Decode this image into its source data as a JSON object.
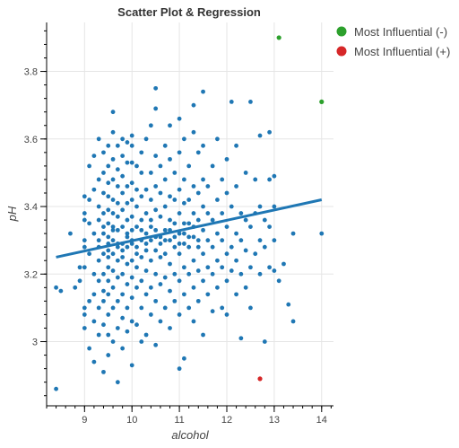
{
  "chart_data": {
    "type": "scatter",
    "title": "Scatter Plot & Regression",
    "xlabel": "alcohol",
    "ylabel": "pH",
    "xlim": [
      8.2,
      14.25
    ],
    "ylim": [
      2.81,
      3.945
    ],
    "x_ticks": [
      9,
      10,
      11,
      12,
      13,
      14
    ],
    "x_tick_labels": [
      "9",
      "10",
      "11",
      "12",
      "13",
      "14"
    ],
    "x_minor_step": 0.2,
    "y_ticks": [
      3.0,
      3.2,
      3.4,
      3.6,
      3.8
    ],
    "y_tick_labels": [
      "3",
      "3.2",
      "3.4",
      "3.6",
      "3.8"
    ],
    "y_minor_step": 0.04,
    "grid": true,
    "legend_position": "outside-right-top",
    "colors": {
      "points": "#1f77b4",
      "regression": "#1f77b4",
      "most_influential_neg": "#2ca02c",
      "most_influential_pos": "#d62728"
    },
    "regression": {
      "x": [
        8.4,
        14.0
      ],
      "y": [
        3.25,
        3.42
      ]
    },
    "legend": [
      {
        "label": "Most Influential (-)",
        "color": "#2ca02c"
      },
      {
        "label": "Most Influential (+)",
        "color": "#d62728"
      }
    ],
    "influential_negative": [
      [
        13.1,
        3.9
      ],
      [
        14.0,
        3.71
      ]
    ],
    "influential_positive": [
      [
        12.7,
        2.89
      ]
    ],
    "points": [
      [
        8.4,
        2.86
      ],
      [
        8.4,
        3.16
      ],
      [
        8.5,
        3.15
      ],
      [
        8.7,
        3.32
      ],
      [
        8.8,
        3.16
      ],
      [
        8.9,
        3.18
      ],
      [
        8.9,
        3.22
      ],
      [
        9.0,
        3.08
      ],
      [
        9.0,
        3.28
      ],
      [
        9.0,
        3.36
      ],
      [
        9.0,
        3.43
      ],
      [
        9.0,
        3.22
      ],
      [
        9.0,
        3.3
      ],
      [
        9.0,
        3.38
      ],
      [
        9.0,
        3.1
      ],
      [
        9.0,
        3.04
      ],
      [
        9.1,
        2.98
      ],
      [
        9.1,
        3.12
      ],
      [
        9.1,
        3.26
      ],
      [
        9.1,
        3.42
      ],
      [
        9.1,
        3.52
      ],
      [
        9.1,
        3.35
      ],
      [
        9.2,
        2.94
      ],
      [
        9.2,
        3.06
      ],
      [
        9.2,
        3.2
      ],
      [
        9.2,
        3.32
      ],
      [
        9.2,
        3.45
      ],
      [
        9.2,
        3.55
      ],
      [
        9.2,
        3.14
      ],
      [
        9.3,
        3.02
      ],
      [
        9.3,
        3.1
      ],
      [
        9.3,
        3.18
      ],
      [
        9.3,
        3.24
      ],
      [
        9.3,
        3.3
      ],
      [
        9.3,
        3.36
      ],
      [
        9.3,
        3.4
      ],
      [
        9.3,
        3.48
      ],
      [
        9.3,
        3.6
      ],
      [
        9.3,
        3.28
      ],
      [
        9.4,
        2.91
      ],
      [
        9.4,
        3.05
      ],
      [
        9.4,
        3.15
      ],
      [
        9.4,
        3.2
      ],
      [
        9.4,
        3.26
      ],
      [
        9.4,
        3.32
      ],
      [
        9.4,
        3.38
      ],
      [
        9.4,
        3.44
      ],
      [
        9.4,
        3.5
      ],
      [
        9.4,
        3.56
      ],
      [
        9.4,
        3.34
      ],
      [
        9.4,
        3.12
      ],
      [
        9.5,
        2.96
      ],
      [
        9.5,
        3.02
      ],
      [
        9.5,
        3.08
      ],
      [
        9.5,
        3.14
      ],
      [
        9.5,
        3.18
      ],
      [
        9.5,
        3.22
      ],
      [
        9.5,
        3.27
      ],
      [
        9.5,
        3.31
      ],
      [
        9.5,
        3.35
      ],
      [
        9.5,
        3.39
      ],
      [
        9.5,
        3.43
      ],
      [
        9.5,
        3.47
      ],
      [
        9.5,
        3.52
      ],
      [
        9.5,
        3.58
      ],
      [
        9.5,
        3.25
      ],
      [
        9.5,
        3.29
      ],
      [
        9.6,
        3.0
      ],
      [
        9.6,
        3.1
      ],
      [
        9.6,
        3.16
      ],
      [
        9.6,
        3.21
      ],
      [
        9.6,
        3.26
      ],
      [
        9.6,
        3.3
      ],
      [
        9.6,
        3.34
      ],
      [
        9.6,
        3.38
      ],
      [
        9.6,
        3.42
      ],
      [
        9.6,
        3.48
      ],
      [
        9.6,
        3.54
      ],
      [
        9.6,
        3.62
      ],
      [
        9.6,
        3.68
      ],
      [
        9.6,
        3.33
      ],
      [
        9.7,
        2.88
      ],
      [
        9.7,
        3.04
      ],
      [
        9.7,
        3.12
      ],
      [
        9.7,
        3.19
      ],
      [
        9.7,
        3.24
      ],
      [
        9.7,
        3.29
      ],
      [
        9.7,
        3.33
      ],
      [
        9.7,
        3.37
      ],
      [
        9.7,
        3.41
      ],
      [
        9.7,
        3.46
      ],
      [
        9.7,
        3.51
      ],
      [
        9.7,
        3.58
      ],
      [
        9.7,
        3.28
      ],
      [
        9.8,
        2.98
      ],
      [
        9.8,
        3.07
      ],
      [
        9.8,
        3.14
      ],
      [
        9.8,
        3.2
      ],
      [
        9.8,
        3.25
      ],
      [
        9.8,
        3.29
      ],
      [
        9.8,
        3.34
      ],
      [
        9.8,
        3.39
      ],
      [
        9.8,
        3.44
      ],
      [
        9.8,
        3.49
      ],
      [
        9.8,
        3.55
      ],
      [
        9.8,
        3.6
      ],
      [
        9.8,
        3.27
      ],
      [
        9.9,
        3.03
      ],
      [
        9.9,
        3.1
      ],
      [
        9.9,
        3.17
      ],
      [
        9.9,
        3.23
      ],
      [
        9.9,
        3.28
      ],
      [
        9.9,
        3.32
      ],
      [
        9.9,
        3.36
      ],
      [
        9.9,
        3.41
      ],
      [
        9.9,
        3.46
      ],
      [
        9.9,
        3.53
      ],
      [
        9.9,
        3.59
      ],
      [
        9.9,
        3.31
      ],
      [
        10.0,
        2.93
      ],
      [
        10.0,
        3.06
      ],
      [
        10.0,
        3.13
      ],
      [
        10.0,
        3.19
      ],
      [
        10.0,
        3.24
      ],
      [
        10.0,
        3.29
      ],
      [
        10.0,
        3.33
      ],
      [
        10.0,
        3.37
      ],
      [
        10.0,
        3.42
      ],
      [
        10.0,
        3.47
      ],
      [
        10.0,
        3.53
      ],
      [
        10.0,
        3.58
      ],
      [
        10.0,
        3.61
      ],
      [
        10.0,
        3.3
      ],
      [
        10.1,
        3.05
      ],
      [
        10.1,
        3.16
      ],
      [
        10.1,
        3.22
      ],
      [
        10.1,
        3.28
      ],
      [
        10.1,
        3.34
      ],
      [
        10.1,
        3.4
      ],
      [
        10.1,
        3.45
      ],
      [
        10.1,
        3.52
      ],
      [
        10.1,
        3.26
      ],
      [
        10.2,
        3.0
      ],
      [
        10.2,
        3.1
      ],
      [
        10.2,
        3.18
      ],
      [
        10.2,
        3.25
      ],
      [
        10.2,
        3.3
      ],
      [
        10.2,
        3.36
      ],
      [
        10.2,
        3.43
      ],
      [
        10.2,
        3.5
      ],
      [
        10.2,
        3.56
      ],
      [
        10.2,
        3.33
      ],
      [
        10.3,
        3.02
      ],
      [
        10.3,
        3.14
      ],
      [
        10.3,
        3.21
      ],
      [
        10.3,
        3.27
      ],
      [
        10.3,
        3.32
      ],
      [
        10.3,
        3.38
      ],
      [
        10.3,
        3.45
      ],
      [
        10.3,
        3.6
      ],
      [
        10.3,
        3.29
      ],
      [
        10.4,
        3.08
      ],
      [
        10.4,
        3.16
      ],
      [
        10.4,
        3.24
      ],
      [
        10.4,
        3.3
      ],
      [
        10.4,
        3.36
      ],
      [
        10.4,
        3.42
      ],
      [
        10.4,
        3.5
      ],
      [
        10.4,
        3.64
      ],
      [
        10.4,
        3.34
      ],
      [
        10.5,
        2.99
      ],
      [
        10.5,
        3.12
      ],
      [
        10.5,
        3.2
      ],
      [
        10.5,
        3.27
      ],
      [
        10.5,
        3.33
      ],
      [
        10.5,
        3.39
      ],
      [
        10.5,
        3.46
      ],
      [
        10.5,
        3.55
      ],
      [
        10.5,
        3.69
      ],
      [
        10.5,
        3.75
      ],
      [
        10.5,
        3.31
      ],
      [
        10.6,
        3.06
      ],
      [
        10.6,
        3.17
      ],
      [
        10.6,
        3.25
      ],
      [
        10.6,
        3.31
      ],
      [
        10.6,
        3.37
      ],
      [
        10.6,
        3.44
      ],
      [
        10.6,
        3.52
      ],
      [
        10.6,
        3.29
      ],
      [
        10.7,
        3.1
      ],
      [
        10.7,
        3.19
      ],
      [
        10.7,
        3.26
      ],
      [
        10.7,
        3.33
      ],
      [
        10.7,
        3.4
      ],
      [
        10.7,
        3.48
      ],
      [
        10.7,
        3.58
      ],
      [
        10.7,
        3.3
      ],
      [
        10.8,
        3.04
      ],
      [
        10.8,
        3.15
      ],
      [
        10.8,
        3.23
      ],
      [
        10.8,
        3.3
      ],
      [
        10.8,
        3.36
      ],
      [
        10.8,
        3.43
      ],
      [
        10.8,
        3.54
      ],
      [
        10.8,
        3.64
      ],
      [
        10.8,
        3.33
      ],
      [
        10.9,
        3.12
      ],
      [
        10.9,
        3.2
      ],
      [
        10.9,
        3.28
      ],
      [
        10.9,
        3.35
      ],
      [
        10.9,
        3.42
      ],
      [
        10.9,
        3.5
      ],
      [
        10.9,
        3.31
      ],
      [
        11.0,
        2.92
      ],
      [
        11.0,
        3.08
      ],
      [
        11.0,
        3.18
      ],
      [
        11.0,
        3.26
      ],
      [
        11.0,
        3.32
      ],
      [
        11.0,
        3.38
      ],
      [
        11.0,
        3.45
      ],
      [
        11.0,
        3.56
      ],
      [
        11.0,
        3.66
      ],
      [
        11.0,
        3.29
      ],
      [
        11.1,
        2.95
      ],
      [
        11.1,
        3.14
      ],
      [
        11.1,
        3.22
      ],
      [
        11.1,
        3.29
      ],
      [
        11.1,
        3.35
      ],
      [
        11.1,
        3.41
      ],
      [
        11.1,
        3.48
      ],
      [
        11.1,
        3.6
      ],
      [
        11.1,
        3.32
      ],
      [
        11.2,
        3.1
      ],
      [
        11.2,
        3.2
      ],
      [
        11.2,
        3.28
      ],
      [
        11.2,
        3.35
      ],
      [
        11.2,
        3.42
      ],
      [
        11.2,
        3.52
      ],
      [
        11.2,
        3.31
      ],
      [
        11.3,
        3.06
      ],
      [
        11.3,
        3.16
      ],
      [
        11.3,
        3.24
      ],
      [
        11.3,
        3.31
      ],
      [
        11.3,
        3.38
      ],
      [
        11.3,
        3.46
      ],
      [
        11.3,
        3.62
      ],
      [
        11.3,
        3.7
      ],
      [
        11.3,
        3.34
      ],
      [
        11.4,
        3.12
      ],
      [
        11.4,
        3.21
      ],
      [
        11.4,
        3.28
      ],
      [
        11.4,
        3.36
      ],
      [
        11.4,
        3.44
      ],
      [
        11.4,
        3.56
      ],
      [
        11.4,
        3.3
      ],
      [
        11.5,
        3.02
      ],
      [
        11.5,
        3.18
      ],
      [
        11.5,
        3.26
      ],
      [
        11.5,
        3.33
      ],
      [
        11.5,
        3.4
      ],
      [
        11.5,
        3.48
      ],
      [
        11.5,
        3.58
      ],
      [
        11.5,
        3.74
      ],
      [
        11.6,
        3.14
      ],
      [
        11.6,
        3.22
      ],
      [
        11.6,
        3.3
      ],
      [
        11.6,
        3.38
      ],
      [
        11.6,
        3.46
      ],
      [
        11.7,
        3.09
      ],
      [
        11.7,
        3.2
      ],
      [
        11.7,
        3.28
      ],
      [
        11.7,
        3.36
      ],
      [
        11.7,
        3.52
      ],
      [
        11.8,
        3.16
      ],
      [
        11.8,
        3.24
      ],
      [
        11.8,
        3.32
      ],
      [
        11.8,
        3.42
      ],
      [
        11.8,
        3.6
      ],
      [
        11.9,
        3.1
      ],
      [
        11.9,
        3.22
      ],
      [
        11.9,
        3.3
      ],
      [
        11.9,
        3.38
      ],
      [
        11.9,
        3.48
      ],
      [
        12.0,
        3.08
      ],
      [
        12.0,
        3.18
      ],
      [
        12.0,
        3.26
      ],
      [
        12.0,
        3.34
      ],
      [
        12.0,
        3.44
      ],
      [
        12.0,
        3.54
      ],
      [
        12.1,
        3.21
      ],
      [
        12.1,
        3.28
      ],
      [
        12.1,
        3.4
      ],
      [
        12.1,
        3.71
      ],
      [
        12.2,
        3.14
      ],
      [
        12.2,
        3.24
      ],
      [
        12.2,
        3.32
      ],
      [
        12.2,
        3.46
      ],
      [
        12.2,
        3.58
      ],
      [
        12.3,
        3.01
      ],
      [
        12.3,
        3.2
      ],
      [
        12.3,
        3.3
      ],
      [
        12.3,
        3.38
      ],
      [
        12.4,
        3.16
      ],
      [
        12.4,
        3.27
      ],
      [
        12.4,
        3.36
      ],
      [
        12.4,
        3.5
      ],
      [
        12.5,
        3.1
      ],
      [
        12.5,
        3.22
      ],
      [
        12.5,
        3.34
      ],
      [
        12.5,
        3.71
      ],
      [
        12.6,
        3.26
      ],
      [
        12.6,
        3.38
      ],
      [
        12.6,
        3.48
      ],
      [
        12.7,
        3.2
      ],
      [
        12.7,
        3.3
      ],
      [
        12.7,
        3.4
      ],
      [
        12.7,
        3.61
      ],
      [
        12.8,
        3.0
      ],
      [
        12.8,
        3.28
      ],
      [
        12.8,
        3.36
      ],
      [
        12.9,
        3.22
      ],
      [
        12.9,
        3.34
      ],
      [
        12.9,
        3.48
      ],
      [
        12.9,
        3.62
      ],
      [
        13.0,
        3.21
      ],
      [
        13.0,
        3.3
      ],
      [
        13.0,
        3.4
      ],
      [
        13.0,
        3.49
      ],
      [
        13.1,
        3.18
      ],
      [
        13.2,
        3.23
      ],
      [
        13.3,
        3.11
      ],
      [
        13.4,
        3.06
      ],
      [
        13.4,
        3.32
      ],
      [
        14.0,
        3.32
      ]
    ]
  }
}
